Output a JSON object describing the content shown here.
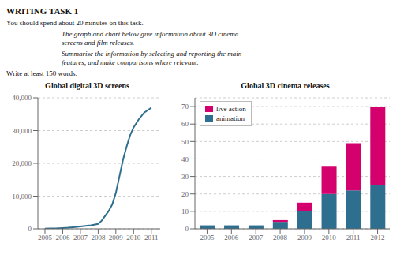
{
  "title": "WRITING TASK 1",
  "subtitle": "You should spend about 20 minutes on this task.",
  "annotations": [
    "The graph and chart below give information about 3D cinema\nscreens and film releases.",
    "Summarise the information by selecting and reporting the main\nfeatures, and make comparisons where relevant.",
    "Write at least 150 words."
  ],
  "chart_data": [
    {
      "type": "line",
      "title": "Global digital 3D screens",
      "x": [
        2005,
        2005.3,
        2005.6,
        2006,
        2006.3,
        2006.6,
        2007,
        2007.3,
        2007.6,
        2008,
        2008.2,
        2008.4,
        2008.6,
        2008.8,
        2009,
        2009.2,
        2009.4,
        2009.6,
        2009.8,
        2010,
        2010.3,
        2010.6,
        2011
      ],
      "values": [
        50,
        100,
        150,
        250,
        350,
        500,
        700,
        900,
        1100,
        1500,
        2500,
        4000,
        5500,
        7500,
        11000,
        16000,
        21000,
        25000,
        28500,
        31000,
        33500,
        35500,
        37000
      ],
      "color": "#2e6e8e",
      "xlim": [
        2004.6,
        2011.5
      ],
      "xticks": [
        2005,
        2006,
        2007,
        2008,
        2009,
        2010,
        2011
      ],
      "ylim": [
        0,
        40000
      ],
      "yticks": [
        0,
        {
          "value": 10000,
          "label": "10,000"
        },
        {
          "value": 20000,
          "label": "20,000"
        },
        {
          "value": 30000,
          "label": "30,000"
        },
        {
          "value": 40000,
          "label": "40,000"
        }
      ],
      "grid": true
    },
    {
      "type": "bar",
      "title": "Global 3D cinema releases",
      "categories": [
        "2005",
        "2006",
        "2007",
        "2008",
        "2009",
        "2010",
        "2011",
        "2012"
      ],
      "series": [
        {
          "name": "animation",
          "color": "#2e6e8e",
          "values": [
            2,
            2,
            2,
            4,
            10,
            20,
            22,
            25
          ]
        },
        {
          "name": "live action",
          "color": "#d4006e",
          "values": [
            0,
            0,
            0,
            1,
            5,
            16,
            27,
            45
          ]
        }
      ],
      "stacked": true,
      "ylim": [
        0,
        75
      ],
      "yticks": [
        0,
        10,
        20,
        30,
        40,
        50,
        60,
        70
      ],
      "grid": true,
      "legend": "upper left"
    }
  ]
}
